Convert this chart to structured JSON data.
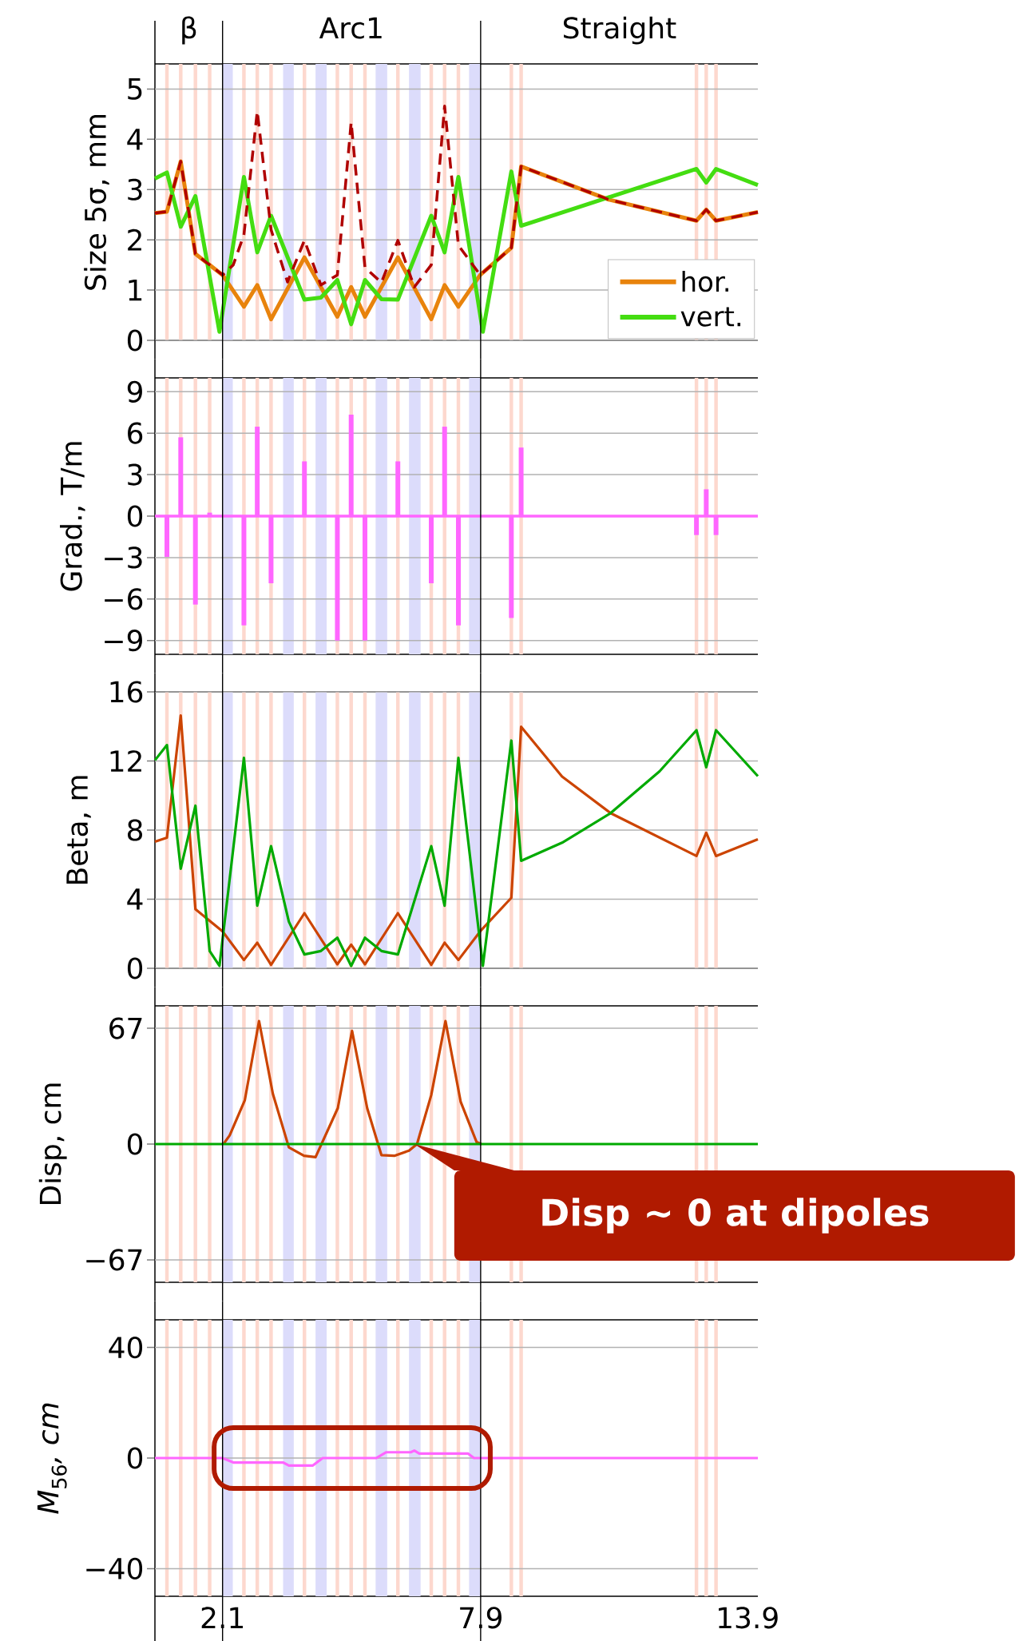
{
  "chart_data": [
    {
      "type": "line",
      "ylabel": "Size 5σ, mm",
      "xlim": [
        0.58,
        14.13
      ],
      "xticks": [
        2.1,
        7.9,
        13.9
      ],
      "ylim": [
        0,
        5.5
      ],
      "yticks": [
        0,
        1,
        2,
        3,
        4,
        5
      ],
      "grid": "y",
      "tick_labels": "y",
      "legend": "bottom right",
      "annotations": [
        "β",
        "Arc1",
        "Straight"
      ],
      "series": [
        {
          "name": "hor.",
          "color": "#e8830c",
          "x": [
            0.58,
            0.85,
            1.16,
            1.49,
            2.1,
            2.58,
            2.88,
            3.19,
            3.94,
            4.68,
            4.99,
            5.3,
            6.04,
            6.79,
            7.09,
            7.4,
            7.89,
            8.59,
            8.81,
            10.78,
            12.75,
            12.97,
            13.19,
            14.13
          ],
          "values": [
            2.53,
            2.56,
            3.56,
            1.72,
            1.3,
            0.67,
            1.1,
            0.42,
            1.65,
            0.47,
            1.06,
            0.47,
            1.65,
            0.42,
            1.1,
            0.67,
            1.3,
            1.84,
            3.46,
            2.8,
            2.38,
            2.6,
            2.38,
            2.55
          ]
        },
        {
          "name": "vert.",
          "color": "#44dd11",
          "x": [
            0.58,
            0.85,
            1.16,
            1.49,
            2.03,
            2.58,
            2.88,
            3.19,
            3.94,
            4.31,
            4.68,
            4.99,
            5.3,
            5.67,
            6.04,
            6.79,
            7.09,
            7.4,
            7.95,
            8.59,
            8.81,
            12.75,
            12.97,
            13.19,
            14.13
          ],
          "values": [
            3.22,
            3.34,
            2.26,
            2.87,
            0.17,
            3.25,
            1.75,
            2.48,
            0.81,
            0.85,
            1.2,
            0.32,
            1.2,
            0.82,
            0.81,
            2.48,
            1.75,
            3.25,
            0.17,
            3.36,
            2.28,
            3.41,
            3.14,
            3.41,
            3.09
          ]
        },
        {
          "color": "#b00000",
          "line_style": "dashed",
          "x": [
            0.58,
            0.85,
            1.16,
            1.49,
            2.1,
            2.34,
            2.58,
            2.88,
            3.19,
            3.56,
            3.94,
            4.31,
            4.68,
            4.99,
            5.3,
            5.67,
            6.04,
            6.41,
            6.79,
            7.09,
            7.4,
            7.89,
            8.59,
            8.81,
            10.78,
            12.75,
            12.97,
            13.19,
            14.13
          ],
          "values": [
            2.53,
            2.56,
            3.56,
            1.72,
            1.3,
            1.5,
            2.1,
            4.56,
            2.2,
            1.16,
            1.99,
            1.1,
            1.3,
            4.34,
            1.45,
            1.15,
            1.99,
            1.06,
            1.5,
            4.66,
            1.89,
            1.3,
            1.84,
            3.46,
            2.8,
            2.38,
            2.6,
            2.38,
            2.55
          ]
        }
      ],
      "ref_lines": [
        {
          "axis": "x",
          "value": 2.1,
          "color": "#000000"
        },
        {
          "axis": "x",
          "value": 7.9,
          "color": "#000000"
        }
      ],
      "bands": [
        {
          "axis": "x",
          "from": 0.81,
          "to": 0.89,
          "color": "#fdd8ce"
        },
        {
          "axis": "x",
          "from": 1.12,
          "to": 1.2,
          "color": "#fdd8ce"
        },
        {
          "axis": "x",
          "from": 1.45,
          "to": 1.53,
          "color": "#fdd8ce"
        },
        {
          "axis": "x",
          "from": 1.77,
          "to": 1.85,
          "color": "#fdd8ce"
        },
        {
          "axis": "x",
          "from": 2.54,
          "to": 2.62,
          "color": "#fdd8ce"
        },
        {
          "axis": "x",
          "from": 2.84,
          "to": 2.92,
          "color": "#fdd8ce"
        },
        {
          "axis": "x",
          "from": 3.15,
          "to": 3.23,
          "color": "#fdd8ce"
        },
        {
          "axis": "x",
          "from": 3.9,
          "to": 3.98,
          "color": "#fdd8ce"
        },
        {
          "axis": "x",
          "from": 4.64,
          "to": 4.72,
          "color": "#fdd8ce"
        },
        {
          "axis": "x",
          "from": 4.95,
          "to": 5.03,
          "color": "#fdd8ce"
        },
        {
          "axis": "x",
          "from": 5.26,
          "to": 5.34,
          "color": "#fdd8ce"
        },
        {
          "axis": "x",
          "from": 6.0,
          "to": 6.08,
          "color": "#fdd8ce"
        },
        {
          "axis": "x",
          "from": 6.75,
          "to": 6.83,
          "color": "#fdd8ce"
        },
        {
          "axis": "x",
          "from": 7.05,
          "to": 7.13,
          "color": "#fdd8ce"
        },
        {
          "axis": "x",
          "from": 7.36,
          "to": 7.44,
          "color": "#fdd8ce"
        },
        {
          "axis": "x",
          "from": 8.55,
          "to": 8.63,
          "color": "#fdd8ce"
        },
        {
          "axis": "x",
          "from": 8.77,
          "to": 8.85,
          "color": "#fdd8ce"
        },
        {
          "axis": "x",
          "from": 12.71,
          "to": 12.79,
          "color": "#fdd8ce"
        },
        {
          "axis": "x",
          "from": 12.93,
          "to": 13.01,
          "color": "#fdd8ce"
        },
        {
          "axis": "x",
          "from": 13.15,
          "to": 13.23,
          "color": "#fdd8ce"
        },
        {
          "axis": "x",
          "from": 2.1,
          "to": 2.33,
          "color": "#dcdcfb"
        },
        {
          "axis": "x",
          "from": 3.46,
          "to": 3.7,
          "color": "#dcdcfb"
        },
        {
          "axis": "x",
          "from": 4.19,
          "to": 4.44,
          "color": "#dcdcfb"
        },
        {
          "axis": "x",
          "from": 5.54,
          "to": 5.8,
          "color": "#dcdcfb"
        },
        {
          "axis": "x",
          "from": 6.29,
          "to": 6.55,
          "color": "#dcdcfb"
        },
        {
          "axis": "x",
          "from": 7.64,
          "to": 7.89,
          "color": "#dcdcfb"
        }
      ]
    },
    {
      "type": "bar",
      "ylabel": "Grad., T/m",
      "xlim": [
        0.58,
        14.13
      ],
      "xticks": [
        2.1,
        7.9,
        13.9
      ],
      "ylim": [
        -10,
        10
      ],
      "yticks": [
        {
          "value": -9,
          "label": "−9"
        },
        {
          "value": -6,
          "label": "−6"
        },
        {
          "value": -3,
          "label": "−3"
        },
        0,
        3,
        6,
        9
      ],
      "grid": "y",
      "tick_labels": "y",
      "color": "#ff66ff",
      "x": [
        0.85,
        1.16,
        1.49,
        1.81,
        2.58,
        2.88,
        3.19,
        3.94,
        4.68,
        4.99,
        5.3,
        6.04,
        6.79,
        7.09,
        7.4,
        8.59,
        8.81,
        12.75,
        12.97,
        13.19
      ],
      "values": [
        -2.95,
        5.7,
        -6.4,
        0.25,
        -7.9,
        6.47,
        -4.86,
        3.96,
        -9.0,
        7.34,
        -9.0,
        3.96,
        -4.86,
        6.47,
        -7.9,
        -7.37,
        4.96,
        -1.37,
        1.94,
        -1.37
      ],
      "ref_lines": [
        {
          "axis": "y",
          "value": 0,
          "color": "#ff66ff"
        },
        {
          "axis": "x",
          "value": 2.1,
          "color": "#000000"
        },
        {
          "axis": "x",
          "value": 7.9,
          "color": "#000000"
        }
      ],
      "bands": [
        {
          "axis": "x",
          "from": 0.81,
          "to": 0.89,
          "color": "#fdd8ce"
        },
        {
          "axis": "x",
          "from": 1.12,
          "to": 1.2,
          "color": "#fdd8ce"
        },
        {
          "axis": "x",
          "from": 1.45,
          "to": 1.53,
          "color": "#fdd8ce"
        },
        {
          "axis": "x",
          "from": 1.77,
          "to": 1.85,
          "color": "#fdd8ce"
        },
        {
          "axis": "x",
          "from": 2.54,
          "to": 2.62,
          "color": "#fdd8ce"
        },
        {
          "axis": "x",
          "from": 2.84,
          "to": 2.92,
          "color": "#fdd8ce"
        },
        {
          "axis": "x",
          "from": 3.15,
          "to": 3.23,
          "color": "#fdd8ce"
        },
        {
          "axis": "x",
          "from": 3.9,
          "to": 3.98,
          "color": "#fdd8ce"
        },
        {
          "axis": "x",
          "from": 4.64,
          "to": 4.72,
          "color": "#fdd8ce"
        },
        {
          "axis": "x",
          "from": 4.95,
          "to": 5.03,
          "color": "#fdd8ce"
        },
        {
          "axis": "x",
          "from": 5.26,
          "to": 5.34,
          "color": "#fdd8ce"
        },
        {
          "axis": "x",
          "from": 6.0,
          "to": 6.08,
          "color": "#fdd8ce"
        },
        {
          "axis": "x",
          "from": 6.75,
          "to": 6.83,
          "color": "#fdd8ce"
        },
        {
          "axis": "x",
          "from": 7.05,
          "to": 7.13,
          "color": "#fdd8ce"
        },
        {
          "axis": "x",
          "from": 7.36,
          "to": 7.44,
          "color": "#fdd8ce"
        },
        {
          "axis": "x",
          "from": 8.55,
          "to": 8.63,
          "color": "#fdd8ce"
        },
        {
          "axis": "x",
          "from": 8.77,
          "to": 8.85,
          "color": "#fdd8ce"
        },
        {
          "axis": "x",
          "from": 12.71,
          "to": 12.79,
          "color": "#fdd8ce"
        },
        {
          "axis": "x",
          "from": 12.93,
          "to": 13.01,
          "color": "#fdd8ce"
        },
        {
          "axis": "x",
          "from": 13.15,
          "to": 13.23,
          "color": "#fdd8ce"
        },
        {
          "axis": "x",
          "from": 2.1,
          "to": 2.33,
          "color": "#dcdcfb"
        },
        {
          "axis": "x",
          "from": 3.46,
          "to": 3.7,
          "color": "#dcdcfb"
        },
        {
          "axis": "x",
          "from": 4.19,
          "to": 4.44,
          "color": "#dcdcfb"
        },
        {
          "axis": "x",
          "from": 5.54,
          "to": 5.8,
          "color": "#dcdcfb"
        },
        {
          "axis": "x",
          "from": 6.29,
          "to": 6.55,
          "color": "#dcdcfb"
        },
        {
          "axis": "x",
          "from": 7.64,
          "to": 7.89,
          "color": "#dcdcfb"
        }
      ]
    },
    {
      "type": "line",
      "ylabel": "Beta, m",
      "xlim": [
        0.58,
        14.13
      ],
      "xticks": [
        2.1,
        7.9,
        13.9
      ],
      "ylim": [
        0,
        16
      ],
      "yticks": [
        0,
        4,
        8,
        12,
        16
      ],
      "grid": "y",
      "tick_labels": "y",
      "series": [
        {
          "color": "#cc4400",
          "x": [
            0.58,
            0.85,
            1.16,
            1.49,
            2.1,
            2.58,
            2.88,
            3.19,
            3.94,
            4.68,
            4.99,
            5.3,
            6.04,
            6.79,
            7.09,
            7.4,
            7.89,
            8.59,
            8.81,
            9.73,
            10.82,
            12.75,
            12.97,
            13.19,
            14.13
          ],
          "values": [
            7.33,
            7.56,
            14.63,
            3.42,
            2.14,
            0.48,
            1.48,
            0.2,
            3.19,
            0.23,
            1.37,
            0.23,
            3.19,
            0.2,
            1.48,
            0.48,
            2.14,
            4.08,
            13.98,
            11.1,
            8.98,
            6.5,
            7.84,
            6.5,
            7.47
          ]
        },
        {
          "color": "#00aa00",
          "x": [
            0.58,
            0.85,
            1.16,
            1.49,
            1.81,
            2.03,
            2.58,
            2.88,
            3.19,
            3.59,
            3.94,
            4.31,
            4.68,
            4.99,
            5.3,
            5.67,
            6.04,
            6.79,
            7.09,
            7.4,
            7.95,
            8.59,
            8.81,
            9.73,
            10.82,
            11.92,
            12.75,
            12.97,
            13.19,
            14.13
          ],
          "values": [
            12.04,
            12.92,
            5.76,
            9.41,
            1.0,
            0.14,
            12.18,
            3.62,
            7.07,
            2.7,
            0.8,
            1.0,
            1.77,
            0.14,
            1.77,
            1.0,
            0.8,
            7.07,
            3.62,
            12.18,
            0.14,
            13.18,
            6.22,
            7.27,
            8.98,
            11.4,
            13.78,
            11.64,
            13.78,
            11.12
          ]
        }
      ],
      "ref_lines": [
        {
          "axis": "x",
          "value": 2.1,
          "color": "#000000"
        },
        {
          "axis": "x",
          "value": 7.9,
          "color": "#000000"
        }
      ],
      "bands": [
        {
          "axis": "x",
          "from": 0.81,
          "to": 0.89,
          "color": "#fdd8ce"
        },
        {
          "axis": "x",
          "from": 1.12,
          "to": 1.2,
          "color": "#fdd8ce"
        },
        {
          "axis": "x",
          "from": 1.45,
          "to": 1.53,
          "color": "#fdd8ce"
        },
        {
          "axis": "x",
          "from": 1.77,
          "to": 1.85,
          "color": "#fdd8ce"
        },
        {
          "axis": "x",
          "from": 2.54,
          "to": 2.62,
          "color": "#fdd8ce"
        },
        {
          "axis": "x",
          "from": 2.84,
          "to": 2.92,
          "color": "#fdd8ce"
        },
        {
          "axis": "x",
          "from": 3.15,
          "to": 3.23,
          "color": "#fdd8ce"
        },
        {
          "axis": "x",
          "from": 3.9,
          "to": 3.98,
          "color": "#fdd8ce"
        },
        {
          "axis": "x",
          "from": 4.64,
          "to": 4.72,
          "color": "#fdd8ce"
        },
        {
          "axis": "x",
          "from": 4.95,
          "to": 5.03,
          "color": "#fdd8ce"
        },
        {
          "axis": "x",
          "from": 5.26,
          "to": 5.34,
          "color": "#fdd8ce"
        },
        {
          "axis": "x",
          "from": 6.0,
          "to": 6.08,
          "color": "#fdd8ce"
        },
        {
          "axis": "x",
          "from": 6.75,
          "to": 6.83,
          "color": "#fdd8ce"
        },
        {
          "axis": "x",
          "from": 7.05,
          "to": 7.13,
          "color": "#fdd8ce"
        },
        {
          "axis": "x",
          "from": 7.36,
          "to": 7.44,
          "color": "#fdd8ce"
        },
        {
          "axis": "x",
          "from": 8.55,
          "to": 8.63,
          "color": "#fdd8ce"
        },
        {
          "axis": "x",
          "from": 8.77,
          "to": 8.85,
          "color": "#fdd8ce"
        },
        {
          "axis": "x",
          "from": 12.71,
          "to": 12.79,
          "color": "#fdd8ce"
        },
        {
          "axis": "x",
          "from": 12.93,
          "to": 13.01,
          "color": "#fdd8ce"
        },
        {
          "axis": "x",
          "from": 13.15,
          "to": 13.23,
          "color": "#fdd8ce"
        },
        {
          "axis": "x",
          "from": 2.1,
          "to": 2.33,
          "color": "#dcdcfb"
        },
        {
          "axis": "x",
          "from": 3.46,
          "to": 3.7,
          "color": "#dcdcfb"
        },
        {
          "axis": "x",
          "from": 4.19,
          "to": 4.44,
          "color": "#dcdcfb"
        },
        {
          "axis": "x",
          "from": 5.54,
          "to": 5.8,
          "color": "#dcdcfb"
        },
        {
          "axis": "x",
          "from": 6.29,
          "to": 6.55,
          "color": "#dcdcfb"
        },
        {
          "axis": "x",
          "from": 7.64,
          "to": 7.89,
          "color": "#dcdcfb"
        }
      ]
    },
    {
      "type": "line",
      "ylabel": "Disp, cm",
      "xlim": [
        0.58,
        14.13
      ],
      "xticks": [
        2.1,
        7.9,
        13.9
      ],
      "ylim": [
        -80,
        80
      ],
      "yticks": [
        {
          "value": -67,
          "label": "−67"
        },
        0,
        67
      ],
      "grid": "y",
      "tick_labels": "y",
      "series": [
        {
          "color": "#cc4400",
          "x": [
            2.12,
            2.26,
            2.6,
            2.92,
            3.23,
            3.59,
            3.93,
            4.19,
            4.69,
            5.01,
            5.35,
            5.67,
            5.96,
            6.29,
            6.47,
            6.79,
            7.11,
            7.45,
            7.81,
            7.92
          ],
          "values": [
            0,
            5,
            25.4,
            71.2,
            29.1,
            -1.9,
            -6.8,
            -7.6,
            20.8,
            65.5,
            20.8,
            -6.4,
            -6.8,
            -3.8,
            0,
            28.4,
            71.2,
            24.6,
            1.1,
            0
          ]
        },
        {
          "color": "#00aa00",
          "x": [
            0.58,
            14.13
          ],
          "values": [
            0,
            0
          ]
        }
      ],
      "annotations": [
        {
          "text": "Disp ∼ 0 at dipoles",
          "x": 6.41,
          "y": 0
        }
      ],
      "ref_lines": [
        {
          "axis": "x",
          "value": 2.1,
          "color": "#000000"
        },
        {
          "axis": "x",
          "value": 7.9,
          "color": "#000000"
        }
      ],
      "bands": [
        {
          "axis": "x",
          "from": 0.81,
          "to": 0.89,
          "color": "#fdd8ce"
        },
        {
          "axis": "x",
          "from": 1.12,
          "to": 1.2,
          "color": "#fdd8ce"
        },
        {
          "axis": "x",
          "from": 1.45,
          "to": 1.53,
          "color": "#fdd8ce"
        },
        {
          "axis": "x",
          "from": 1.77,
          "to": 1.85,
          "color": "#fdd8ce"
        },
        {
          "axis": "x",
          "from": 2.54,
          "to": 2.62,
          "color": "#fdd8ce"
        },
        {
          "axis": "x",
          "from": 2.84,
          "to": 2.92,
          "color": "#fdd8ce"
        },
        {
          "axis": "x",
          "from": 3.15,
          "to": 3.23,
          "color": "#fdd8ce"
        },
        {
          "axis": "x",
          "from": 3.9,
          "to": 3.98,
          "color": "#fdd8ce"
        },
        {
          "axis": "x",
          "from": 4.64,
          "to": 4.72,
          "color": "#fdd8ce"
        },
        {
          "axis": "x",
          "from": 4.95,
          "to": 5.03,
          "color": "#fdd8ce"
        },
        {
          "axis": "x",
          "from": 5.26,
          "to": 5.34,
          "color": "#fdd8ce"
        },
        {
          "axis": "x",
          "from": 6.0,
          "to": 6.08,
          "color": "#fdd8ce"
        },
        {
          "axis": "x",
          "from": 6.75,
          "to": 6.83,
          "color": "#fdd8ce"
        },
        {
          "axis": "x",
          "from": 7.05,
          "to": 7.13,
          "color": "#fdd8ce"
        },
        {
          "axis": "x",
          "from": 7.36,
          "to": 7.44,
          "color": "#fdd8ce"
        },
        {
          "axis": "x",
          "from": 8.55,
          "to": 8.63,
          "color": "#fdd8ce"
        },
        {
          "axis": "x",
          "from": 8.77,
          "to": 8.85,
          "color": "#fdd8ce"
        },
        {
          "axis": "x",
          "from": 12.71,
          "to": 12.79,
          "color": "#fdd8ce"
        },
        {
          "axis": "x",
          "from": 12.93,
          "to": 13.01,
          "color": "#fdd8ce"
        },
        {
          "axis": "x",
          "from": 13.15,
          "to": 13.23,
          "color": "#fdd8ce"
        },
        {
          "axis": "x",
          "from": 2.1,
          "to": 2.33,
          "color": "#dcdcfb"
        },
        {
          "axis": "x",
          "from": 3.46,
          "to": 3.7,
          "color": "#dcdcfb"
        },
        {
          "axis": "x",
          "from": 4.19,
          "to": 4.44,
          "color": "#dcdcfb"
        },
        {
          "axis": "x",
          "from": 5.54,
          "to": 5.8,
          "color": "#dcdcfb"
        },
        {
          "axis": "x",
          "from": 6.29,
          "to": 6.55,
          "color": "#dcdcfb"
        },
        {
          "axis": "x",
          "from": 7.64,
          "to": 7.89,
          "color": "#dcdcfb"
        }
      ]
    },
    {
      "type": "line",
      "ylabel": "*M*$_{56}$*, cm*",
      "xlim": [
        0.58,
        14.13
      ],
      "xticks": [
        2.1,
        7.9,
        13.9
      ],
      "ylim": [
        -50,
        50
      ],
      "yticks": [
        {
          "value": -40,
          "label": "−40"
        },
        0,
        40
      ],
      "grid": "y",
      "color": "#ff66ff",
      "x": [
        0.58,
        2.1,
        2.34,
        3.46,
        3.59,
        4.13,
        4.35,
        5.56,
        5.78,
        6.33,
        6.41,
        6.52,
        7.62,
        7.75,
        14.13
      ],
      "values": [
        0,
        0,
        -1.6,
        -1.6,
        -2.7,
        -2.7,
        0,
        0,
        2.1,
        2.1,
        2.7,
        1.6,
        1.6,
        0,
        0
      ],
      "ref_lines": [
        {
          "axis": "x",
          "value": 2.1,
          "color": "#000000"
        },
        {
          "axis": "x",
          "value": 7.9,
          "color": "#000000"
        }
      ],
      "bands": [
        {
          "axis": "x",
          "from": 0.81,
          "to": 0.89,
          "color": "#fdd8ce"
        },
        {
          "axis": "x",
          "from": 1.12,
          "to": 1.2,
          "color": "#fdd8ce"
        },
        {
          "axis": "x",
          "from": 1.45,
          "to": 1.53,
          "color": "#fdd8ce"
        },
        {
          "axis": "x",
          "from": 1.77,
          "to": 1.85,
          "color": "#fdd8ce"
        },
        {
          "axis": "x",
          "from": 2.54,
          "to": 2.62,
          "color": "#fdd8ce"
        },
        {
          "axis": "x",
          "from": 2.84,
          "to": 2.92,
          "color": "#fdd8ce"
        },
        {
          "axis": "x",
          "from": 3.15,
          "to": 3.23,
          "color": "#fdd8ce"
        },
        {
          "axis": "x",
          "from": 3.9,
          "to": 3.98,
          "color": "#fdd8ce"
        },
        {
          "axis": "x",
          "from": 4.64,
          "to": 4.72,
          "color": "#fdd8ce"
        },
        {
          "axis": "x",
          "from": 4.95,
          "to": 5.03,
          "color": "#fdd8ce"
        },
        {
          "axis": "x",
          "from": 5.26,
          "to": 5.34,
          "color": "#fdd8ce"
        },
        {
          "axis": "x",
          "from": 6.0,
          "to": 6.08,
          "color": "#fdd8ce"
        },
        {
          "axis": "x",
          "from": 6.75,
          "to": 6.83,
          "color": "#fdd8ce"
        },
        {
          "axis": "x",
          "from": 7.05,
          "to": 7.13,
          "color": "#fdd8ce"
        },
        {
          "axis": "x",
          "from": 7.36,
          "to": 7.44,
          "color": "#fdd8ce"
        },
        {
          "axis": "x",
          "from": 8.55,
          "to": 8.63,
          "color": "#fdd8ce"
        },
        {
          "axis": "x",
          "from": 8.77,
          "to": 8.85,
          "color": "#fdd8ce"
        },
        {
          "axis": "x",
          "from": 12.71,
          "to": 12.79,
          "color": "#fdd8ce"
        },
        {
          "axis": "x",
          "from": 12.93,
          "to": 13.01,
          "color": "#fdd8ce"
        },
        {
          "axis": "x",
          "from": 13.15,
          "to": 13.23,
          "color": "#fdd8ce"
        },
        {
          "axis": "x",
          "from": 2.1,
          "to": 2.33,
          "color": "#dcdcfb"
        },
        {
          "axis": "x",
          "from": 3.46,
          "to": 3.7,
          "color": "#dcdcfb"
        },
        {
          "axis": "x",
          "from": 4.19,
          "to": 4.44,
          "color": "#dcdcfb"
        },
        {
          "axis": "x",
          "from": 5.54,
          "to": 5.8,
          "color": "#dcdcfb"
        },
        {
          "axis": "x",
          "from": 6.29,
          "to": 6.55,
          "color": "#dcdcfb"
        },
        {
          "axis": "x",
          "from": 7.64,
          "to": 7.89,
          "color": "#dcdcfb"
        }
      ]
    }
  ]
}
